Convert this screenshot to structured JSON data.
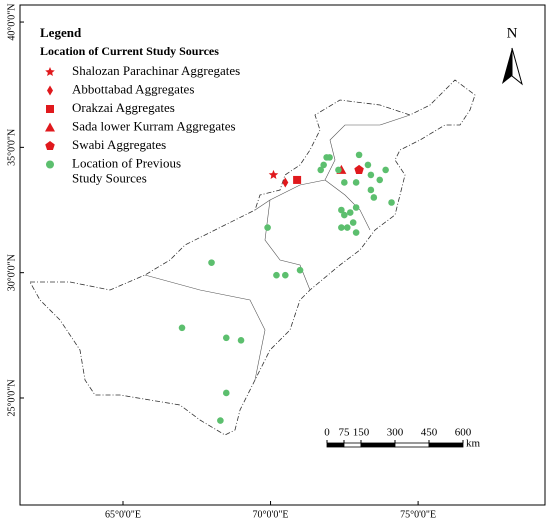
{
  "map": {
    "legend": {
      "title": "Legend",
      "subtitle": "Location of Current Study Sources"
    },
    "north_label": "N",
    "xlim": [
      61.51,
      79.3
    ],
    "ylim": [
      20.73,
      40.68
    ],
    "xticks": [
      {
        "value": 65,
        "label": "65°0'0\"E"
      },
      {
        "value": 70,
        "label": "70°0'0\"E"
      },
      {
        "value": 75,
        "label": "75°0'0\"E"
      }
    ],
    "yticks": [
      {
        "value": 25,
        "label": "25°0'0\"N"
      },
      {
        "value": 30,
        "label": "30°0'0\"N"
      },
      {
        "value": 35,
        "label": "35°0'0\"N"
      },
      {
        "value": 40,
        "label": "40°0'0\"N"
      }
    ],
    "current_sources": [
      {
        "name": "Shalozan Parachinar Aggregates",
        "shape": "star",
        "color": "#e0191d",
        "lon": 70.1,
        "lat": 33.9
      },
      {
        "name": "Abbottabad Aggregates",
        "shape": "diamond",
        "color": "#e0191d",
        "lon": 70.5,
        "lat": 33.6
      },
      {
        "name": "Orakzai Aggregates",
        "shape": "square",
        "color": "#e0191d",
        "lon": 70.9,
        "lat": 33.7
      },
      {
        "name": "Sada lower Kurram Aggregates",
        "shape": "triangle",
        "color": "#e0191d",
        "lon": 72.4,
        "lat": 34.1
      },
      {
        "name": "Swabi Aggregates",
        "shape": "pentagon",
        "color": "#e0191d",
        "lon": 73.0,
        "lat": 34.1
      }
    ],
    "previous_sources": {
      "name": [
        "Location of Previous",
        "Study Sources"
      ],
      "color": "#5cbf6e",
      "lon": [
        71.9,
        72.0,
        71.8,
        71.7,
        72.3,
        72.5,
        72.9,
        73.3,
        73.4,
        73.0,
        73.7,
        73.9,
        73.4,
        73.5,
        74.1,
        72.4,
        72.5,
        72.7,
        72.9,
        72.4,
        72.6,
        72.9,
        72.8,
        69.9,
        68.0,
        70.2,
        70.5,
        71.0,
        67.0,
        68.5,
        69.0,
        68.5,
        68.3
      ],
      "lat": [
        34.6,
        34.6,
        34.3,
        34.1,
        34.1,
        33.6,
        33.6,
        34.3,
        33.9,
        34.7,
        33.7,
        34.1,
        33.3,
        33.0,
        32.8,
        32.5,
        32.3,
        32.4,
        32.6,
        31.8,
        31.8,
        31.6,
        32.0,
        31.8,
        30.4,
        29.9,
        29.9,
        30.1,
        27.8,
        27.4,
        27.3,
        25.2,
        24.1
      ]
    },
    "scale_bar": {
      "ticks": [
        0,
        75,
        150,
        300,
        450,
        600
      ],
      "unit": "km"
    }
  }
}
